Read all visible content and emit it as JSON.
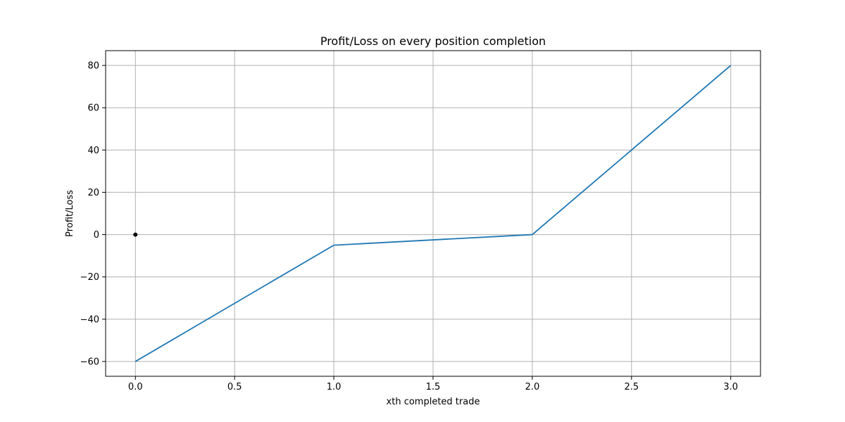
{
  "chart_data": {
    "type": "line",
    "title": "Profit/Loss on every position completion",
    "xlabel": "xth completed trade",
    "ylabel": "Profit/Loss",
    "xlim": [
      -0.15,
      3.15
    ],
    "ylim": [
      -67,
      87
    ],
    "x_ticks": [
      0.0,
      0.5,
      1.0,
      1.5,
      2.0,
      2.5,
      3.0
    ],
    "x_tick_labels": [
      "0.0",
      "0.5",
      "1.0",
      "1.5",
      "2.0",
      "2.5",
      "3.0"
    ],
    "y_ticks": [
      -60,
      -40,
      -20,
      0,
      20,
      40,
      60,
      80
    ],
    "y_tick_labels": [
      "−60",
      "−40",
      "−20",
      "0",
      "20",
      "40",
      "60",
      "80"
    ],
    "grid": true,
    "series": [
      {
        "x": [
          0,
          1,
          2,
          3
        ],
        "values": [
          -60,
          -5,
          0,
          80
        ],
        "color": "#1f77b4"
      }
    ],
    "markers": [
      {
        "x": 0,
        "y": 0,
        "color": "#000000"
      }
    ]
  }
}
